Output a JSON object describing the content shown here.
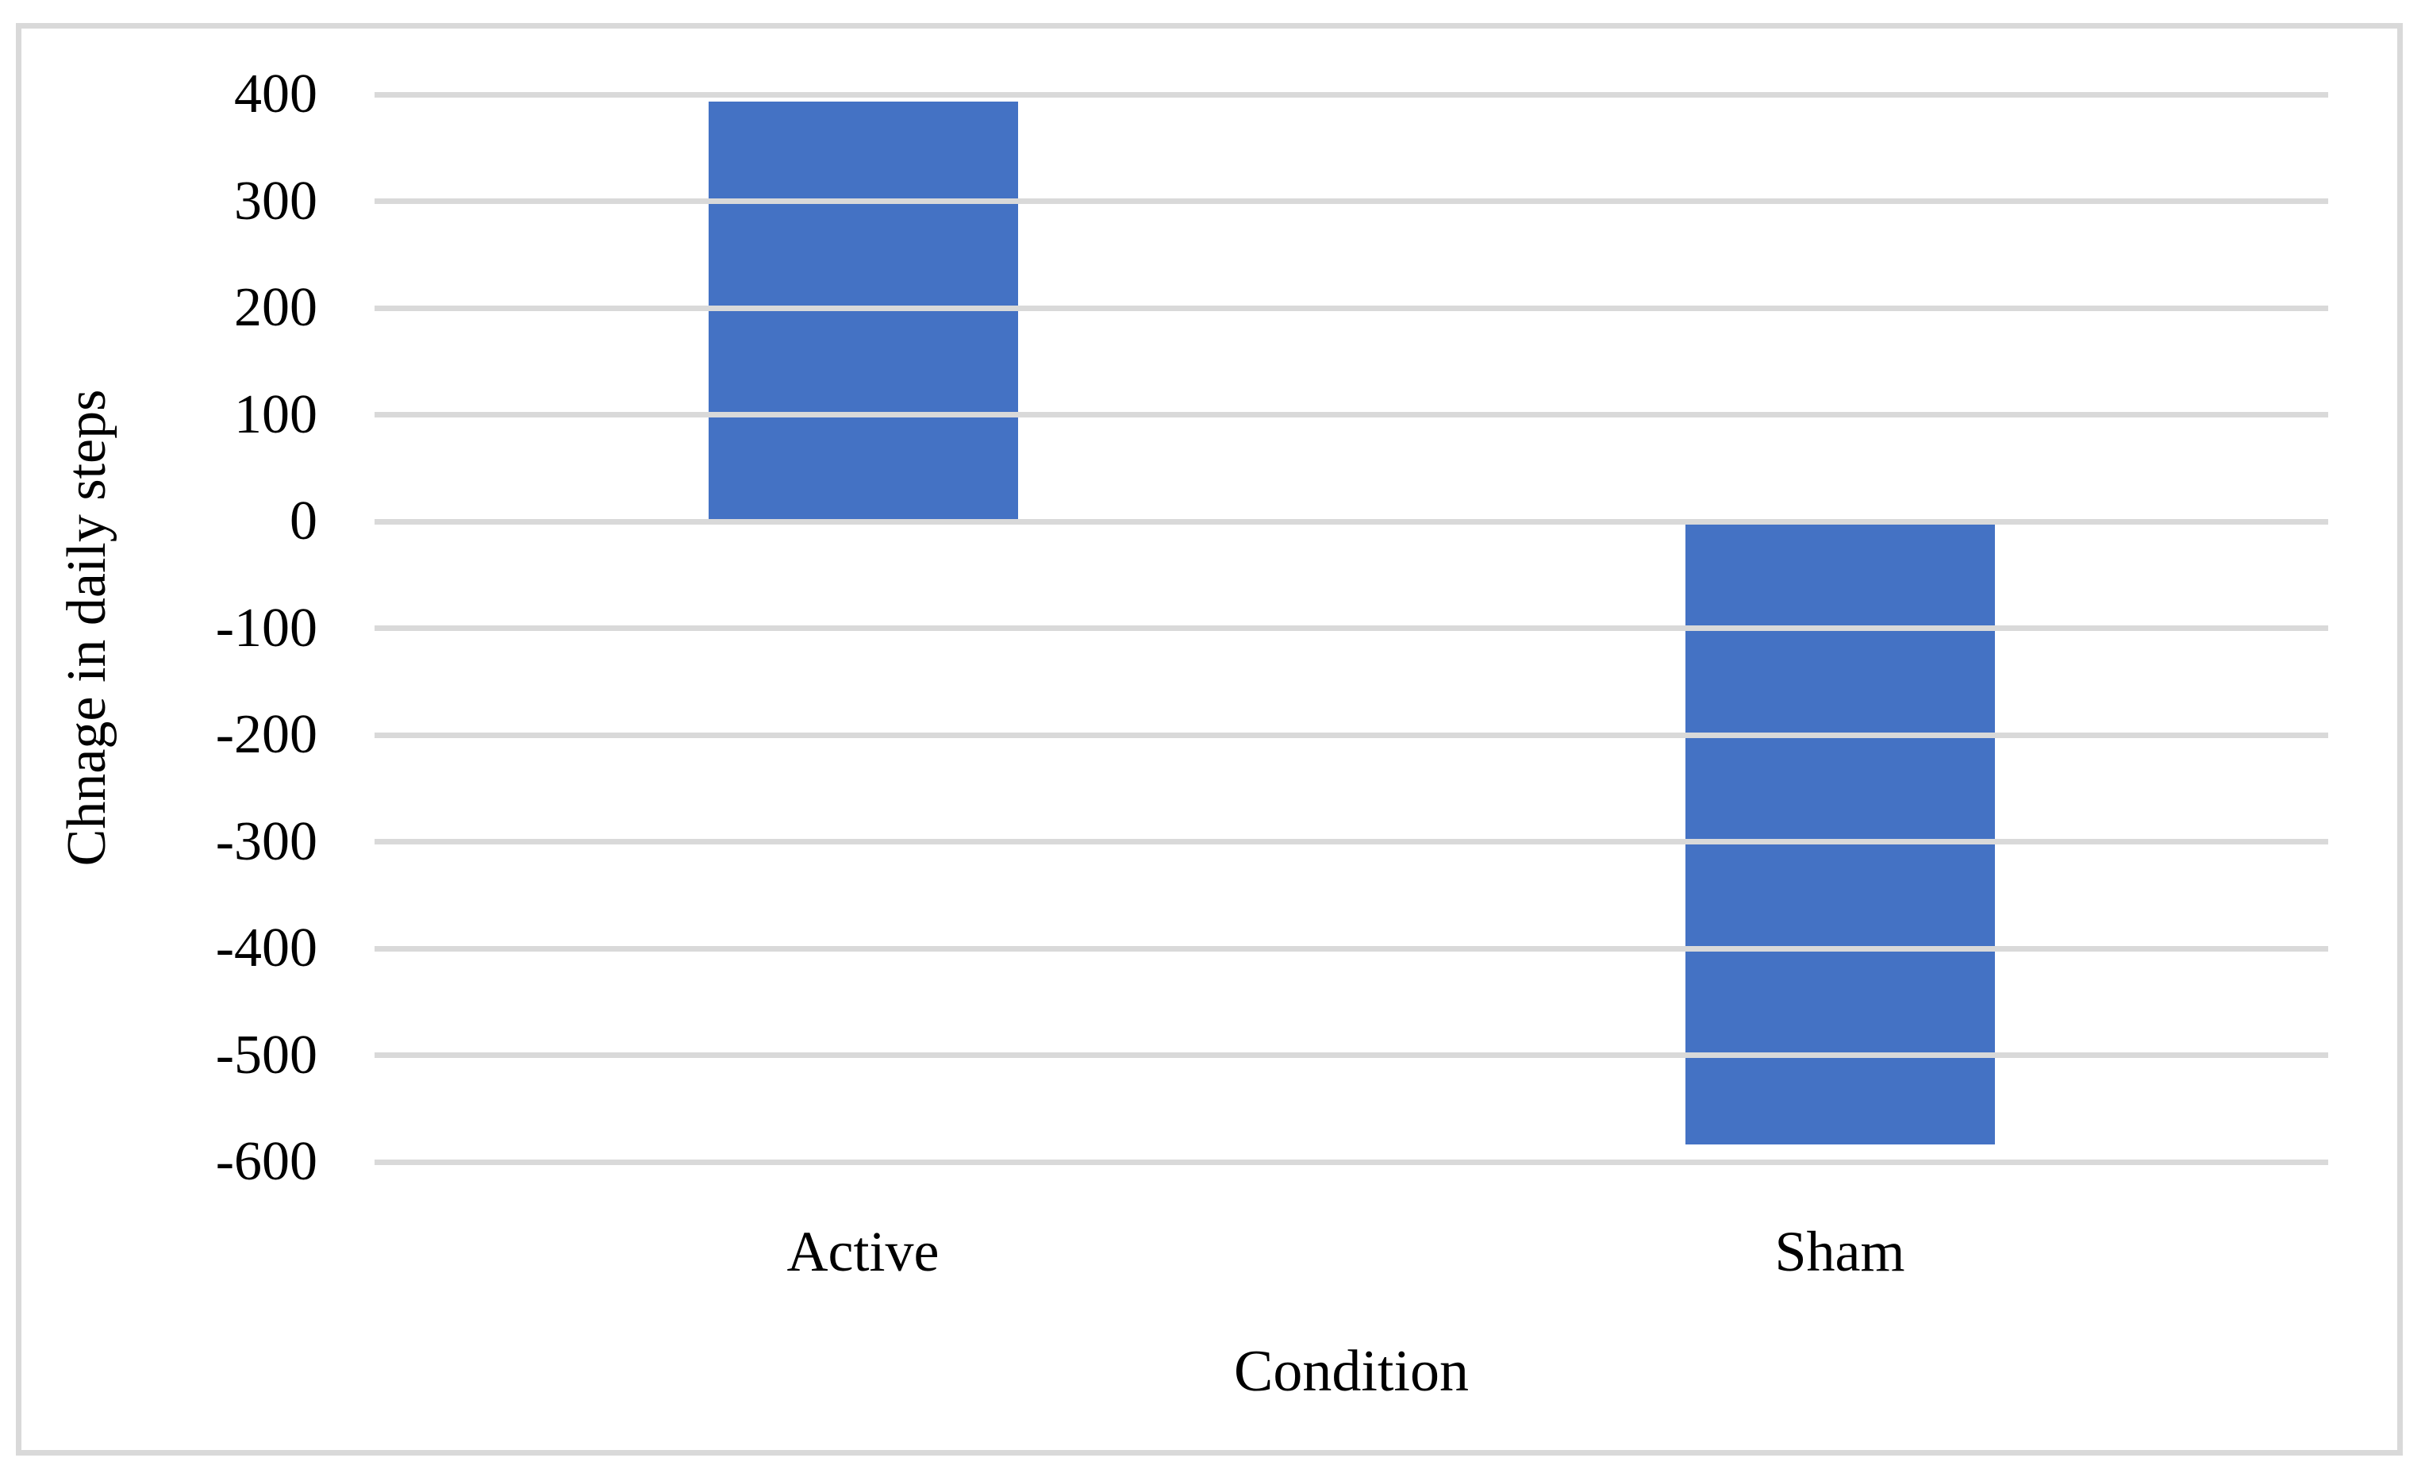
{
  "chart_data": {
    "type": "bar",
    "title": "",
    "categories": [
      "Active",
      "Sham"
    ],
    "values": [
      393,
      -584
    ],
    "xlabel": "Condition",
    "ylabel": "Chnage in daily steps",
    "ylim": [
      -600,
      400
    ],
    "yticks": [
      400,
      300,
      200,
      100,
      0,
      -100,
      -200,
      -300,
      -400,
      -500,
      -600
    ],
    "grid": true,
    "legend": false,
    "bar_color": "#4472C4",
    "gridline_color": "#D9D9D9",
    "frame_border_color": "#D9D9D9",
    "background_color": "#FFFFFF",
    "text_color": "#000000"
  }
}
